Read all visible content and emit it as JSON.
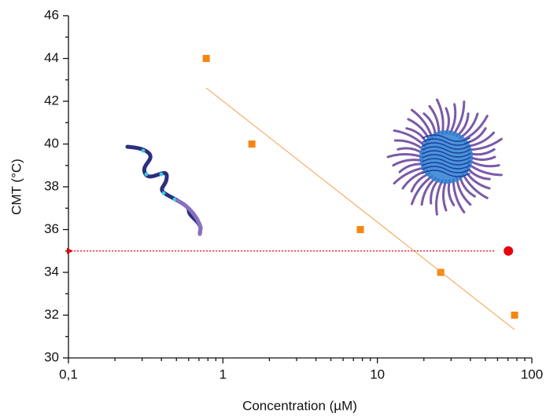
{
  "chart_data": {
    "type": "scatter",
    "x_label": "Concentration (µM)",
    "y_label": "CMT (°C)",
    "xscale": "log",
    "xlim": [
      0.1,
      100
    ],
    "ylim": [
      30,
      46
    ],
    "xticks": [
      {
        "value": 0.1,
        "label": "0,1"
      },
      1,
      10,
      100
    ],
    "yticks": [
      30,
      32,
      34,
      36,
      38,
      40,
      42,
      44,
      46
    ],
    "x_minor_ticks": [
      0.2,
      0.3,
      0.4,
      0.5,
      0.6,
      0.7,
      0.8,
      0.9,
      2,
      3,
      4,
      5,
      6,
      7,
      8,
      9,
      20,
      30,
      40,
      50,
      60,
      70,
      80,
      90
    ],
    "y_minor_ticks": [
      31,
      33,
      35,
      37,
      39,
      41,
      43,
      45
    ],
    "series": [
      {
        "marker": "square",
        "color": "#f7860f",
        "x": [
          0.78,
          1.54,
          7.76,
          25.7,
          77.3
        ],
        "values": [
          44,
          40,
          36,
          34,
          32
        ]
      },
      {
        "line": "solid",
        "color": "#f5a04e",
        "x": [
          0.78,
          77.3
        ],
        "values": [
          42.62,
          31.32
        ]
      },
      {
        "marker": "circle",
        "color": "#e8000b",
        "x": [
          70.5
        ],
        "values": [
          35
        ]
      },
      {
        "line": "dotted",
        "arrow": true,
        "color": "#e8000b",
        "x": [
          57,
          0.1
        ],
        "values": [
          35,
          35
        ]
      }
    ]
  }
}
